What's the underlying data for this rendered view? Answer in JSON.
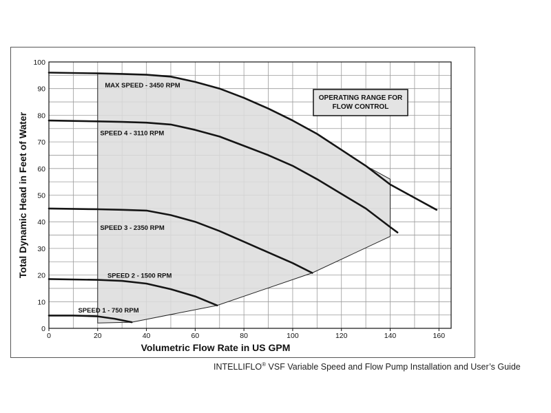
{
  "chart_data": {
    "type": "line",
    "xlabel": "Volumetric Flow Rate in US GPM",
    "ylabel": "Total Dynamic Head in Feet of Water",
    "xlim": [
      0,
      165
    ],
    "ylim": [
      0,
      100
    ],
    "x_ticks": [
      0,
      20,
      40,
      60,
      80,
      100,
      120,
      140,
      160
    ],
    "y_ticks": [
      0,
      10,
      20,
      30,
      40,
      50,
      60,
      70,
      80,
      90,
      100
    ],
    "grid": true,
    "series": [
      {
        "name": "MAX SPEED - 3450 RPM",
        "label_at": [
          23,
          90.5
        ],
        "points": [
          [
            0,
            96
          ],
          [
            20,
            95.7
          ],
          [
            30,
            95.5
          ],
          [
            40,
            95.2
          ],
          [
            50,
            94.5
          ],
          [
            60,
            92.5
          ],
          [
            70,
            90
          ],
          [
            80,
            86.5
          ],
          [
            90,
            82.5
          ],
          [
            100,
            78
          ],
          [
            110,
            73
          ],
          [
            120,
            67
          ],
          [
            130,
            61
          ],
          [
            140,
            54
          ],
          [
            150,
            49
          ],
          [
            159,
            44.5
          ]
        ]
      },
      {
        "name": "SPEED 4 - 3110 RPM",
        "label_at": [
          21,
          72.5
        ],
        "points": [
          [
            0,
            78
          ],
          [
            20,
            77.7
          ],
          [
            30,
            77.5
          ],
          [
            40,
            77.2
          ],
          [
            50,
            76.5
          ],
          [
            60,
            74.5
          ],
          [
            70,
            72
          ],
          [
            80,
            68.5
          ],
          [
            90,
            65
          ],
          [
            100,
            61
          ],
          [
            110,
            56
          ],
          [
            120,
            50.5
          ],
          [
            130,
            45
          ],
          [
            140,
            38
          ],
          [
            143,
            36
          ]
        ]
      },
      {
        "name": "SPEED 3 - 2350 RPM",
        "label_at": [
          21,
          37
        ],
        "points": [
          [
            0,
            45
          ],
          [
            20,
            44.7
          ],
          [
            30,
            44.5
          ],
          [
            40,
            44.2
          ],
          [
            50,
            42.5
          ],
          [
            60,
            40
          ],
          [
            70,
            36.5
          ],
          [
            80,
            32.5
          ],
          [
            90,
            28.5
          ],
          [
            100,
            24.5
          ],
          [
            108,
            20.8
          ]
        ]
      },
      {
        "name": "SPEED 2 - 1500 RPM",
        "label_at": [
          24,
          19
        ],
        "points": [
          [
            0,
            18.5
          ],
          [
            20,
            18.2
          ],
          [
            30,
            17.8
          ],
          [
            40,
            16.8
          ],
          [
            50,
            14.7
          ],
          [
            60,
            12
          ],
          [
            69,
            8.6
          ]
        ]
      },
      {
        "name": "SPEED 1 - 750 RPM",
        "label_at": [
          12,
          6
        ],
        "points": [
          [
            0,
            4.8
          ],
          [
            10,
            4.8
          ],
          [
            20,
            4.5
          ],
          [
            27,
            3.6
          ],
          [
            34,
            2.3
          ]
        ]
      }
    ],
    "operating_range": {
      "label": [
        "OPERATING RANGE FOR",
        "FLOW CONTROL"
      ],
      "polygon": [
        [
          20,
          95.7
        ],
        [
          30,
          95.5
        ],
        [
          40,
          95.2
        ],
        [
          50,
          94.5
        ],
        [
          60,
          92.5
        ],
        [
          70,
          90
        ],
        [
          80,
          86.5
        ],
        [
          90,
          82.5
        ],
        [
          100,
          78
        ],
        [
          110,
          73
        ],
        [
          120,
          67
        ],
        [
          130,
          61
        ],
        [
          140,
          56
        ],
        [
          140,
          34.5
        ],
        [
          108,
          20.8
        ],
        [
          69,
          8.6
        ],
        [
          34,
          2.3
        ],
        [
          20,
          2
        ]
      ]
    }
  },
  "caption": {
    "brand": "INTELLIFLO",
    "reg": "®",
    "rest": " VSF Variable Speed and Flow Pump Installation and User’s Guide"
  }
}
